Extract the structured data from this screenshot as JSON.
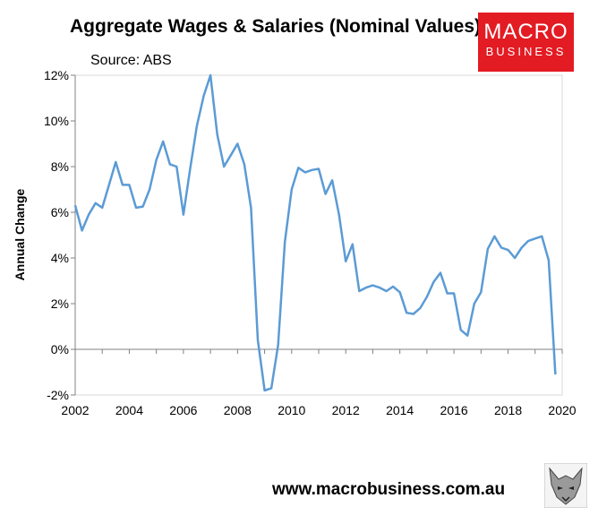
{
  "header": {
    "title": "Aggregate Wages & Salaries (Nominal Values)",
    "source": "Source: ABS"
  },
  "logo": {
    "line1": "MACRO",
    "line2": "BUSINESS",
    "color": "#e31b23"
  },
  "footer": {
    "url": "www.macrobusiness.com.au",
    "mascot_icon": "wolf-mascot-icon"
  },
  "chart_data": {
    "type": "line",
    "ylabel": "Annual Change",
    "xlim": [
      2002,
      2020
    ],
    "ylim": [
      -2,
      12
    ],
    "x_ticks": [
      2002,
      2004,
      2006,
      2008,
      2010,
      2012,
      2014,
      2016,
      2018,
      2020
    ],
    "y_ticks": [
      -2,
      0,
      2,
      4,
      6,
      8,
      10,
      12
    ],
    "y_tick_labels": [
      "-2%",
      "0%",
      "2%",
      "4%",
      "6%",
      "8%",
      "10%",
      "12%"
    ],
    "line_color": "#5b9bd5",
    "grid": false,
    "series": [
      {
        "x": [
          2002.0,
          2002.25,
          2002.5,
          2002.75,
          2003.0,
          2003.25,
          2003.5,
          2003.75,
          2004.0,
          2004.25,
          2004.5,
          2004.75,
          2005.0,
          2005.25,
          2005.5,
          2005.75,
          2006.0,
          2006.25,
          2006.5,
          2006.75,
          2007.0,
          2007.25,
          2007.5,
          2007.75,
          2008.0,
          2008.25,
          2008.5,
          2008.75,
          2009.0,
          2009.25,
          2009.5,
          2009.75,
          2010.0,
          2010.25,
          2010.5,
          2010.75,
          2011.0,
          2011.25,
          2011.5,
          2011.75,
          2012.0,
          2012.25,
          2012.5,
          2012.75,
          2013.0,
          2013.25,
          2013.5,
          2013.75,
          2014.0,
          2014.25,
          2014.5,
          2014.75,
          2015.0,
          2015.25,
          2015.5,
          2015.75,
          2016.0,
          2016.25,
          2016.5,
          2016.75,
          2017.0,
          2017.25,
          2017.5,
          2017.75,
          2018.0,
          2018.25,
          2018.5,
          2018.75,
          2019.0,
          2019.25,
          2019.5,
          2019.75,
          2020.0
        ],
        "values": [
          6.3,
          5.2,
          5.9,
          6.4,
          6.2,
          7.2,
          8.2,
          7.2,
          7.2,
          6.2,
          6.25,
          7.0,
          8.3,
          9.1,
          8.1,
          8.0,
          5.9,
          7.9,
          9.8,
          11.1,
          12.0,
          9.4,
          8.0,
          8.5,
          9.0,
          8.1,
          6.2,
          0.4,
          -1.8,
          -1.7,
          0.2,
          4.7,
          7.0,
          7.95,
          7.75,
          7.85,
          7.9,
          6.8,
          7.4,
          5.9,
          3.85,
          4.6,
          2.55,
          2.7,
          2.8,
          2.7,
          2.55,
          2.75,
          2.5,
          1.6,
          1.55,
          1.8,
          2.3,
          2.95,
          3.35,
          2.45,
          2.45,
          0.85,
          0.6,
          2.0,
          2.5,
          4.4,
          4.95,
          4.45,
          4.35,
          4.0,
          4.45,
          4.75,
          4.85,
          4.95,
          3.9,
          -1.1,
          null
        ]
      }
    ]
  }
}
